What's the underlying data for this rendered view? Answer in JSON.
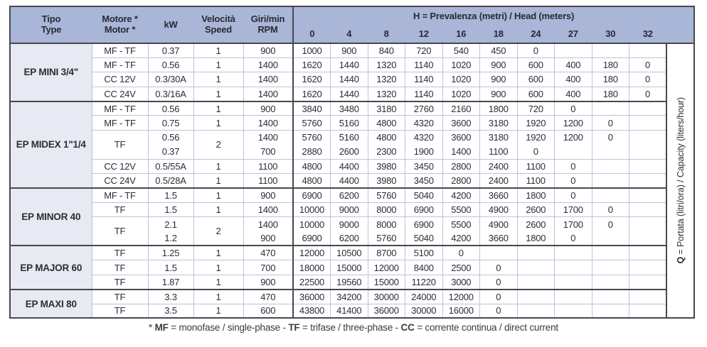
{
  "header": {
    "tipo": [
      "Tipo",
      "Type"
    ],
    "motore": [
      "Motore *",
      "Motor *"
    ],
    "kw": [
      "kW"
    ],
    "velocita": [
      "Velocità",
      "Speed"
    ],
    "giri": [
      "Giri/min",
      "RPM"
    ],
    "head_label": {
      "bold": "H",
      "rest": " = Prevalenza (metri) / Head (meters)"
    },
    "head_values": [
      "0",
      "4",
      "8",
      "12",
      "16",
      "18",
      "24",
      "27",
      "30",
      "32"
    ]
  },
  "q_label": {
    "bold": "Q",
    "rest": " = Portata (litri/ora) / Capacity (liters/hour)"
  },
  "sections": [
    {
      "model": "EP MINI 3/4\"",
      "rows": [
        {
          "motor": "MF - TF",
          "kw": "0.37",
          "speed": "1",
          "rpm": "900",
          "q": [
            "1000",
            "900",
            "840",
            "720",
            "540",
            "450",
            "0",
            "",
            "",
            ""
          ]
        },
        {
          "motor": "MF - TF",
          "kw": "0.56",
          "speed": "1",
          "rpm": "1400",
          "q": [
            "1620",
            "1440",
            "1320",
            "1140",
            "1020",
            "900",
            "600",
            "400",
            "180",
            "0"
          ]
        },
        {
          "motor": "CC 12V",
          "kw": "0.3/30A",
          "speed": "1",
          "rpm": "1400",
          "q": [
            "1620",
            "1440",
            "1320",
            "1140",
            "1020",
            "900",
            "600",
            "400",
            "180",
            "0"
          ]
        },
        {
          "motor": "CC 24V",
          "kw": "0.3/16A",
          "speed": "1",
          "rpm": "1400",
          "q": [
            "1620",
            "1440",
            "1320",
            "1140",
            "1020",
            "900",
            "600",
            "400",
            "180",
            "0"
          ]
        }
      ]
    },
    {
      "model": "EP MIDEX 1\"1/4",
      "rows": [
        {
          "motor": "MF - TF",
          "kw": "0.56",
          "speed": "1",
          "rpm": "900",
          "q": [
            "3840",
            "3480",
            "3180",
            "2760",
            "2160",
            "1800",
            "720",
            "0",
            "",
            ""
          ]
        },
        {
          "motor": "MF - TF",
          "kw": "0.75",
          "speed": "1",
          "rpm": "1400",
          "q": [
            "5760",
            "5160",
            "4800",
            "4320",
            "3600",
            "3180",
            "1920",
            "1200",
            "0",
            ""
          ]
        },
        {
          "motor": "TF",
          "kw": "0.56",
          "speed": "2",
          "rpm": "1400",
          "merge": 2,
          "q": [
            "5760",
            "5160",
            "4800",
            "4320",
            "3600",
            "3180",
            "1920",
            "1200",
            "0",
            ""
          ]
        },
        {
          "sub": true,
          "kw": "0.37",
          "rpm": "700",
          "q": [
            "2880",
            "2600",
            "2300",
            "1900",
            "1400",
            "1100",
            "0",
            "",
            "",
            ""
          ]
        },
        {
          "motor": "CC 12V",
          "kw": "0.5/55A",
          "speed": "1",
          "rpm": "1100",
          "q": [
            "4800",
            "4400",
            "3980",
            "3450",
            "2800",
            "2400",
            "1100",
            "0",
            "",
            ""
          ]
        },
        {
          "motor": "CC 24V",
          "kw": "0.5/28A",
          "speed": "1",
          "rpm": "1100",
          "q": [
            "4800",
            "4400",
            "3980",
            "3450",
            "2800",
            "2400",
            "1100",
            "0",
            "",
            ""
          ]
        }
      ]
    },
    {
      "model": "EP MINOR 40",
      "rows": [
        {
          "motor": "MF - TF",
          "kw": "1.5",
          "speed": "1",
          "rpm": "900",
          "q": [
            "6900",
            "6200",
            "5760",
            "5040",
            "4200",
            "3660",
            "1800",
            "0",
            "",
            ""
          ]
        },
        {
          "motor": "TF",
          "kw": "1.5",
          "speed": "1",
          "rpm": "1400",
          "q": [
            "10000",
            "9000",
            "8000",
            "6900",
            "5500",
            "4900",
            "2600",
            "1700",
            "0",
            ""
          ]
        },
        {
          "motor": "TF",
          "kw": "2.1",
          "speed": "2",
          "rpm": "1400",
          "merge": 2,
          "q": [
            "10000",
            "9000",
            "8000",
            "6900",
            "5500",
            "4900",
            "2600",
            "1700",
            "0",
            ""
          ]
        },
        {
          "sub": true,
          "kw": "1.2",
          "rpm": "900",
          "q": [
            "6900",
            "6200",
            "5760",
            "5040",
            "4200",
            "3660",
            "1800",
            "0",
            "",
            ""
          ]
        }
      ]
    },
    {
      "model": "EP MAJOR 60",
      "rows": [
        {
          "motor": "TF",
          "kw": "1.25",
          "speed": "1",
          "rpm": "470",
          "q": [
            "12000",
            "10500",
            "8700",
            "5100",
            "0",
            "",
            "",
            "",
            "",
            ""
          ]
        },
        {
          "motor": "TF",
          "kw": "1.5",
          "speed": "1",
          "rpm": "700",
          "q": [
            "18000",
            "15000",
            "12000",
            "8400",
            "2500",
            "0",
            "",
            "",
            "",
            ""
          ]
        },
        {
          "motor": "TF",
          "kw": "1.87",
          "speed": "1",
          "rpm": "900",
          "q": [
            "22500",
            "19560",
            "15000",
            "11220",
            "3000",
            "0",
            "",
            "",
            "",
            ""
          ]
        }
      ]
    },
    {
      "model": "EP MAXI 80",
      "rows": [
        {
          "motor": "TF",
          "kw": "3.3",
          "speed": "1",
          "rpm": "470",
          "q": [
            "36000",
            "34200",
            "30000",
            "24000",
            "12000",
            "0",
            "",
            "",
            "",
            ""
          ]
        },
        {
          "motor": "TF",
          "kw": "3.5",
          "speed": "1",
          "rpm": "600",
          "q": [
            "43800",
            "41400",
            "36000",
            "30000",
            "16000",
            "0",
            "",
            "",
            "",
            ""
          ]
        }
      ]
    }
  ],
  "footnote": [
    {
      "text": "* ",
      "bold": false
    },
    {
      "text": "MF",
      "bold": true
    },
    {
      "text": " = monofase / single-phase - ",
      "bold": false
    },
    {
      "text": "TF",
      "bold": true
    },
    {
      "text": " = trifase / three-phase - ",
      "bold": false
    },
    {
      "text": "CC",
      "bold": true
    },
    {
      "text": " = corrente continua / direct current",
      "bold": false
    }
  ],
  "colors": {
    "header_bg": "#a9b6d7",
    "model_bg": "#e7e9f3",
    "grid_light": "#b7c5df",
    "grid_dark": "#47484f",
    "text": "#2c2d35"
  }
}
